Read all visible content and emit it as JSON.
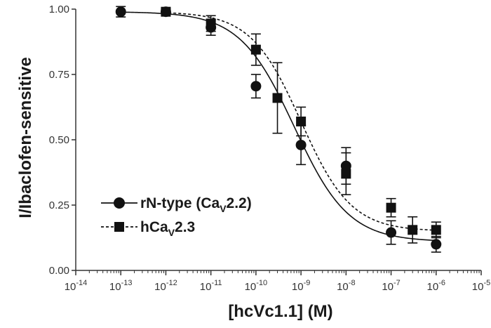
{
  "chart_data": {
    "type": "scatter",
    "xscale": "log",
    "xlabel": "[hcVc1.1] (M)",
    "ylabel": "I/Ibaclofen-sensitive",
    "xlim": [
      1e-14,
      1e-05
    ],
    "ylim": [
      0,
      1
    ],
    "x_tick_labels": [
      {
        "base": "10",
        "exp": "-14"
      },
      {
        "base": "10",
        "exp": "-13"
      },
      {
        "base": "10",
        "exp": "-12"
      },
      {
        "base": "10",
        "exp": "-11"
      },
      {
        "base": "10",
        "exp": "-10"
      },
      {
        "base": "10",
        "exp": "-9"
      },
      {
        "base": "10",
        "exp": "-8"
      },
      {
        "base": "10",
        "exp": "-7"
      },
      {
        "base": "10",
        "exp": "-6"
      },
      {
        "base": "10",
        "exp": "-5"
      }
    ],
    "y_tick_labels": [
      "0.00",
      "0.25",
      "0.50",
      "0.75",
      "1.00"
    ],
    "y_ticks": [
      0,
      0.25,
      0.5,
      0.75,
      1.0
    ],
    "legend_position": "bottom-left",
    "grid": false,
    "series": [
      {
        "name_parts": [
          "rN-type (Ca",
          "V",
          "2.2)"
        ],
        "marker": "circle",
        "line_style": "solid",
        "color": "#111111",
        "points": [
          {
            "x": 1e-13,
            "y": 0.99,
            "err": 0.02
          },
          {
            "x": 1e-12,
            "y": 0.99,
            "err": 0.01
          },
          {
            "x": 1e-11,
            "y": 0.93,
            "err": 0.03
          },
          {
            "x": 1e-10,
            "y": 0.705,
            "err": 0.045
          },
          {
            "x": 1e-09,
            "y": 0.48,
            "err": 0.075
          },
          {
            "x": 1e-08,
            "y": 0.4,
            "err": 0.07
          },
          {
            "x": 1e-07,
            "y": 0.145,
            "err": 0.045
          },
          {
            "x": 1e-06,
            "y": 0.1,
            "err": 0.03
          }
        ],
        "fit": {
          "top": 0.99,
          "bottom": 0.11,
          "logIC50": -9.15,
          "hill": 0.72
        }
      },
      {
        "name_parts": [
          "hCa",
          "V",
          "2.3"
        ],
        "marker": "square",
        "line_style": "dashed",
        "color": "#111111",
        "points": [
          {
            "x": 1e-12,
            "y": 0.99,
            "err": 0.01
          },
          {
            "x": 1e-11,
            "y": 0.945,
            "err": 0.03
          },
          {
            "x": 1e-10,
            "y": 0.845,
            "err": 0.06
          },
          {
            "x": 3e-10,
            "y": 0.66,
            "err": 0.135
          },
          {
            "x": 1e-09,
            "y": 0.57,
            "err": 0.055
          },
          {
            "x": 1e-08,
            "y": 0.37,
            "err": 0.08
          },
          {
            "x": 1e-07,
            "y": 0.24,
            "err": 0.035
          },
          {
            "x": 3e-07,
            "y": 0.155,
            "err": 0.05
          },
          {
            "x": 1e-06,
            "y": 0.155,
            "err": 0.03
          }
        ],
        "fit": {
          "top": 0.99,
          "bottom": 0.15,
          "logIC50": -9.0,
          "hill": 0.78
        }
      }
    ]
  }
}
